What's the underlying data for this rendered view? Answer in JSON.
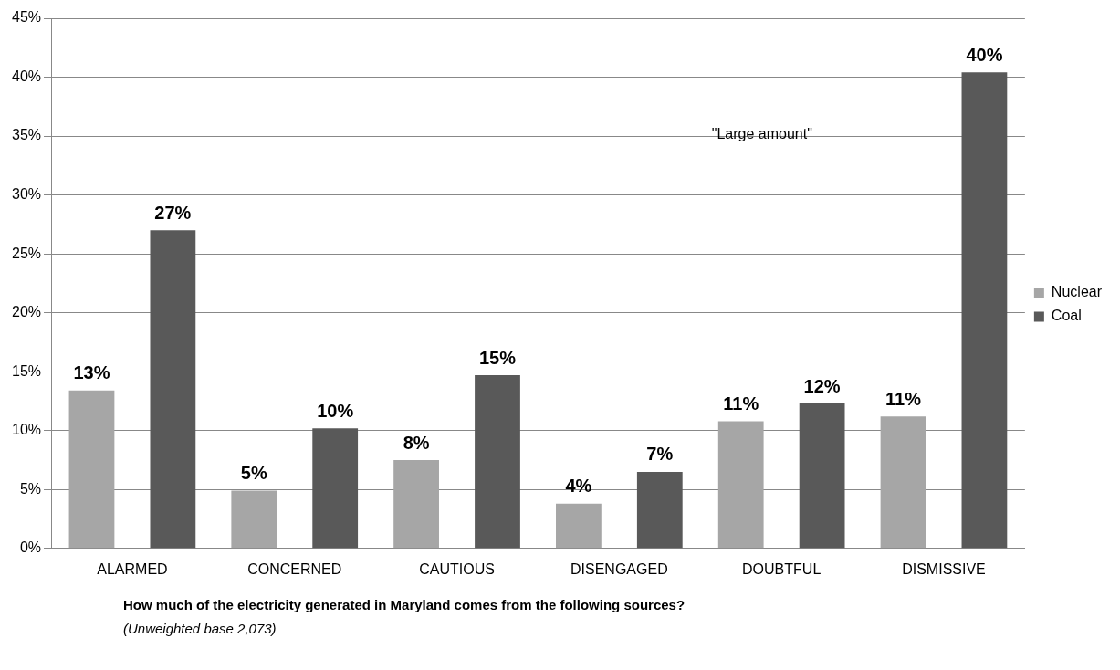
{
  "chart_data": {
    "type": "bar",
    "title": "How much of the electricity generated in Maryland comes from the following sources?",
    "subtitle": "(Unweighted base 2,073)",
    "annotations": [
      "\"Large amount\""
    ],
    "categories": [
      "ALARMED",
      "CONCERNED",
      "CAUTIOUS",
      "DISENGAGED",
      "DOUBTFUL",
      "DISMISSIVE"
    ],
    "series": [
      {
        "name": "Nuclear",
        "color": "#a6a6a6",
        "values": [
          13.4,
          4.9,
          7.5,
          3.8,
          10.8,
          11.2
        ],
        "value_labels": [
          "13%",
          "5%",
          "8%",
          "4%",
          "11%",
          "11%"
        ]
      },
      {
        "name": "Coal",
        "color": "#595959",
        "values": [
          27,
          10.2,
          14.7,
          6.5,
          12.3,
          40.4
        ],
        "value_labels": [
          "27%",
          "10%",
          "15%",
          "7%",
          "12%",
          "40%"
        ]
      }
    ],
    "ylim": [
      0,
      45
    ],
    "yticks": [
      {
        "value": 0,
        "label": "0%"
      },
      {
        "value": 5,
        "label": "5%"
      },
      {
        "value": 10,
        "label": "10%"
      },
      {
        "value": 15,
        "label": "15%"
      },
      {
        "value": 20,
        "label": "20%"
      },
      {
        "value": 25,
        "label": "25%"
      },
      {
        "value": 30,
        "label": "30%"
      },
      {
        "value": 35,
        "label": "35%"
      },
      {
        "value": 40,
        "label": "40%"
      },
      {
        "value": 45,
        "label": "45%"
      }
    ],
    "grid": "y",
    "legend": "right"
  }
}
